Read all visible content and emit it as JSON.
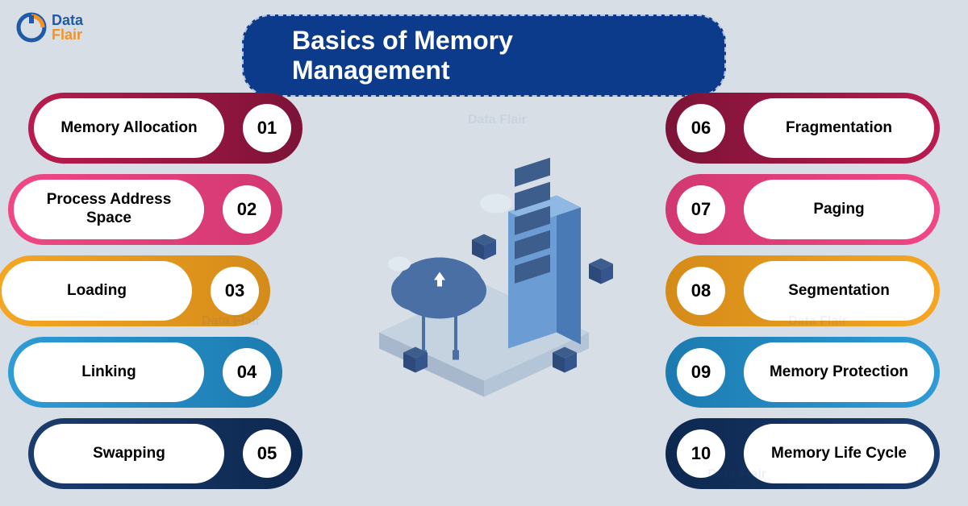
{
  "logo": {
    "text_top": "Data",
    "text_bottom": "Flair"
  },
  "title": "Basics of Memory Management",
  "background_color": "#d8dee5",
  "banner_bg": "#0d3b8c",
  "left_items": [
    {
      "num": "01",
      "label": "Memory Allocation",
      "color1": "#ba1b4f",
      "color2": "#7c1337"
    },
    {
      "num": "02",
      "label": "Process Address Space",
      "color1": "#f04787",
      "color2": "#d23871"
    },
    {
      "num": "03",
      "label": "Loading",
      "color1": "#f5a623",
      "color2": "#d48b19"
    },
    {
      "num": "04",
      "label": "Linking",
      "color1": "#2e9cd6",
      "color2": "#1c7bb0"
    },
    {
      "num": "05",
      "label": "Swapping",
      "color1": "#1a3d6d",
      "color2": "#0d2850"
    }
  ],
  "right_items": [
    {
      "num": "06",
      "label": "Fragmentation",
      "color1": "#ba1b4f",
      "color2": "#7c1337"
    },
    {
      "num": "07",
      "label": "Paging",
      "color1": "#f04787",
      "color2": "#d23871"
    },
    {
      "num": "08",
      "label": "Segmentation",
      "color1": "#f5a623",
      "color2": "#d48b19"
    },
    {
      "num": "09",
      "label": "Memory Protection",
      "color1": "#2e9cd6",
      "color2": "#1c7bb0"
    },
    {
      "num": "10",
      "label": "Memory Life Cycle",
      "color1": "#1a3d6d",
      "color2": "#0d2850"
    }
  ],
  "center_cloud_color": "#4a6fa5",
  "center_server_color": "#5b8fc9",
  "center_cube_color": "#2d4a7a"
}
